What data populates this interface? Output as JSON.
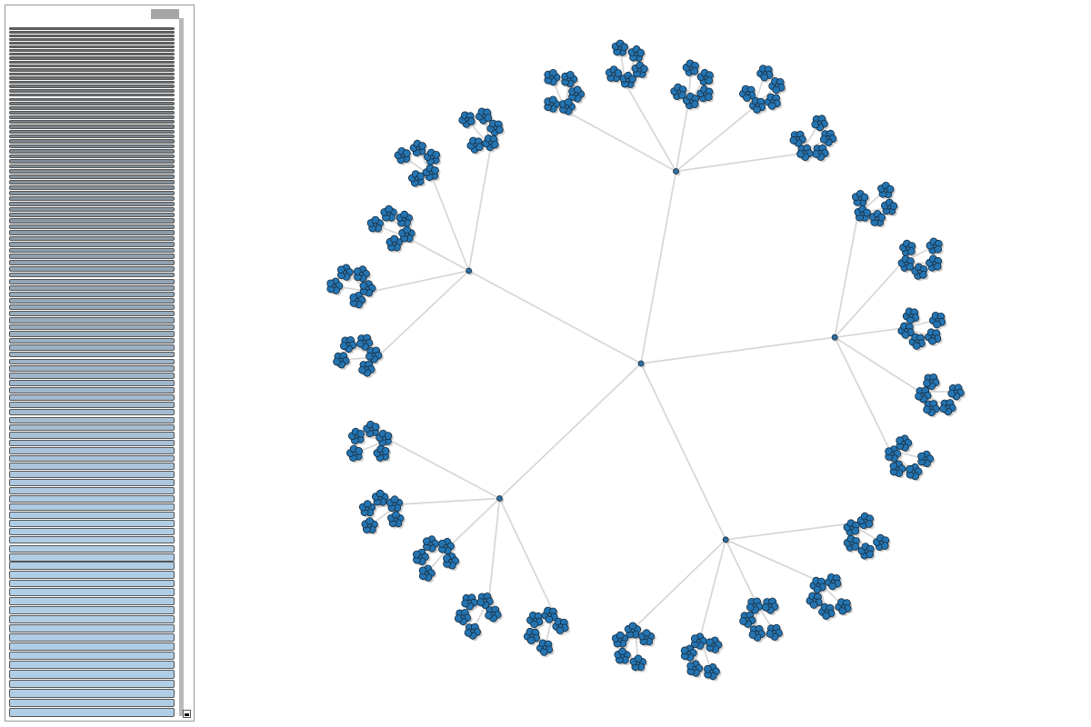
{
  "panel": {
    "bars": {
      "count": 107,
      "color_start": "#646464",
      "color_end": "#b0cde6",
      "border_color": "#555555"
    }
  },
  "tree": {
    "root_branches": 5,
    "branching": 5,
    "depth": 4,
    "node_color": "#2474b2",
    "node_stroke": "#152a3c",
    "link_color": "#d6d6d6"
  }
}
